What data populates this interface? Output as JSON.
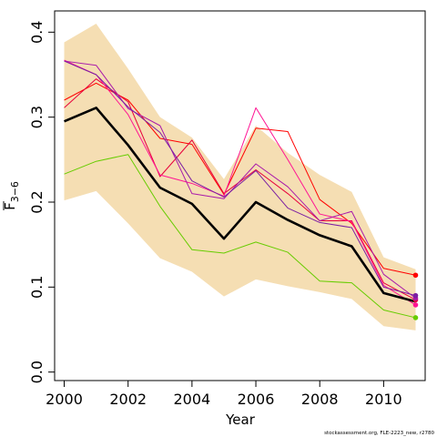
{
  "chart_data": {
    "type": "line",
    "title": "",
    "xlabel": "Year",
    "ylabel": {
      "base": "F",
      "subscript": "3−6"
    },
    "xlim": [
      1999.7,
      2011.3
    ],
    "ylim": [
      -0.01,
      0.425
    ],
    "x_ticks": [
      2000,
      2002,
      2004,
      2006,
      2008,
      2010
    ],
    "y_ticks": [
      0.0,
      0.1,
      0.2,
      0.3,
      0.4
    ],
    "y_tick_labels": [
      "0.0",
      "0.1",
      "0.2",
      "0.3",
      "0.4"
    ],
    "grid": false,
    "legend": "none",
    "x": [
      2000,
      2001,
      2002,
      2003,
      2004,
      2005,
      2006,
      2007,
      2008,
      2009,
      2010,
      2011
    ],
    "band": {
      "color": "#F5DEB3",
      "upper": [
        0.388,
        0.41,
        0.357,
        0.3,
        0.276,
        0.227,
        0.29,
        0.258,
        0.232,
        0.212,
        0.135,
        0.121
      ],
      "lower": [
        0.202,
        0.213,
        0.175,
        0.134,
        0.118,
        0.089,
        0.109,
        0.101,
        0.094,
        0.086,
        0.054,
        0.049
      ]
    },
    "series": [
      {
        "color": "#000000",
        "width": 2.6,
        "endpoint": false,
        "values": [
          0.295,
          0.311,
          0.267,
          0.217,
          0.198,
          0.157,
          0.2,
          0.179,
          0.161,
          0.148,
          0.093,
          0.083
        ]
      },
      {
        "color": "#66CC00",
        "width": 1,
        "endpoint": true,
        "values": [
          0.233,
          0.248,
          0.256,
          0.195,
          0.144,
          0.14,
          0.153,
          0.141,
          0.107,
          0.105,
          0.073,
          0.064
        ]
      },
      {
        "color": "#FF0000",
        "width": 1,
        "endpoint": true,
        "values": [
          0.32,
          0.34,
          0.32,
          0.275,
          0.268,
          0.209,
          0.287,
          0.283,
          0.203,
          0.175,
          0.122,
          0.114
        ]
      },
      {
        "color": "#E8003C",
        "width": 1,
        "endpoint": true,
        "values": [
          0.311,
          0.345,
          0.318,
          0.23,
          0.273,
          0.21,
          0.238,
          0.21,
          0.178,
          0.178,
          0.105,
          0.085
        ]
      },
      {
        "color": "#FF1493",
        "width": 1,
        "endpoint": true,
        "values": [
          0.367,
          0.35,
          0.303,
          0.232,
          0.222,
          0.207,
          0.311,
          0.25,
          0.186,
          0.177,
          0.102,
          0.079
        ]
      },
      {
        "color": "#AA1AAA",
        "width": 1,
        "endpoint": true,
        "values": [
          0.366,
          0.361,
          0.31,
          0.29,
          0.21,
          0.204,
          0.245,
          0.218,
          0.178,
          0.189,
          0.115,
          0.087
        ]
      },
      {
        "color": "#7B1FA2",
        "width": 1,
        "endpoint": true,
        "values": [
          0.366,
          0.35,
          0.312,
          0.282,
          0.225,
          0.206,
          0.237,
          0.193,
          0.176,
          0.17,
          0.1,
          0.09
        ]
      }
    ],
    "footer": "stockassessment.org, FLE-2223_new, r2780"
  }
}
